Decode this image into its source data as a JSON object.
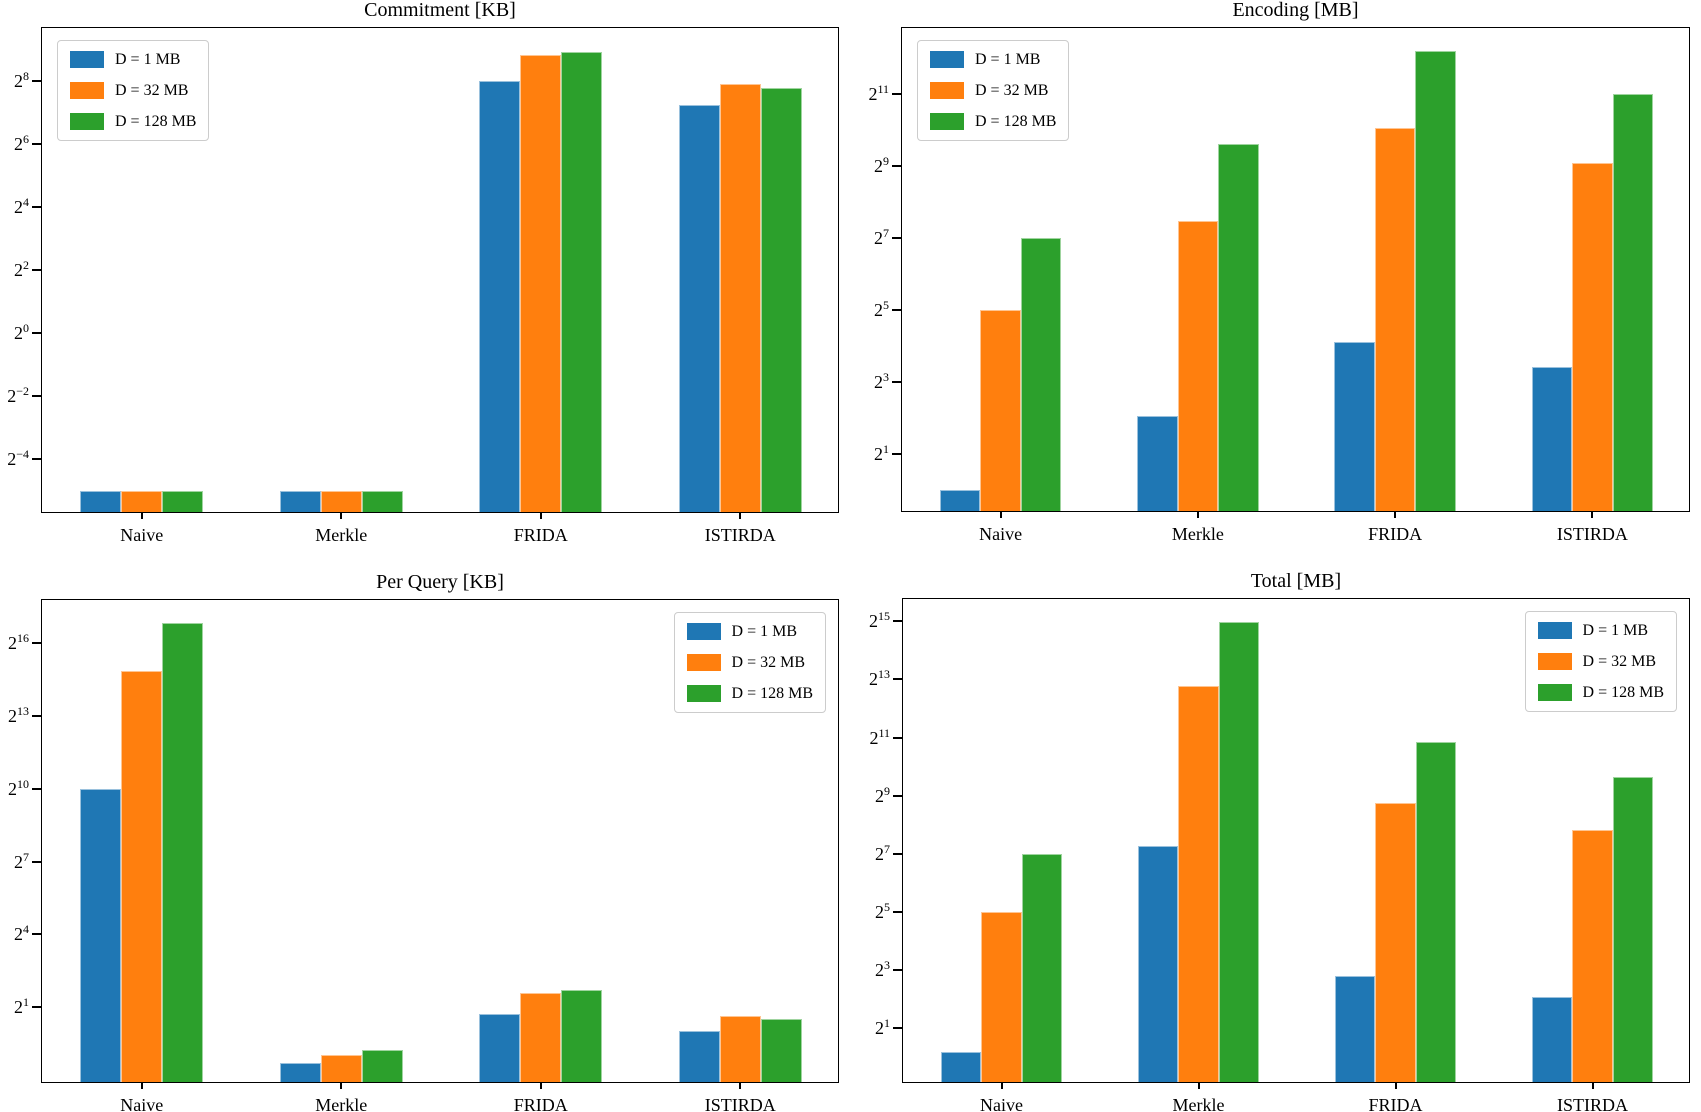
{
  "figure_background": "#ffffff",
  "palette": {
    "series": [
      "#1f77b4",
      "#ff7f0e",
      "#2ca02c"
    ],
    "axis": "#000000",
    "legend_border": "#cccccc"
  },
  "categories": [
    "Naive",
    "Merkle",
    "FRIDA",
    "ISTIRDA"
  ],
  "legend_labels": [
    "D = 1 MB",
    "D = 32 MB",
    "D = 128 MB"
  ],
  "chart_data": [
    {
      "type": "bar",
      "title": "Commitment [KB]",
      "unit": "KB",
      "yscale": "log2",
      "grid": false,
      "legend_position": "upper-left",
      "categories": [
        "Naive",
        "Merkle",
        "FRIDA",
        "ISTIRDA"
      ],
      "ytick_exponents": [
        8,
        6,
        4,
        2,
        0,
        -2,
        -4
      ],
      "ylim_log2": [
        -5.74,
        9.68
      ],
      "series": [
        {
          "name": "D = 1 MB",
          "log2_values": [
            -5.0,
            -5.0,
            8.0,
            7.25
          ]
        },
        {
          "name": "D = 32 MB",
          "log2_values": [
            -5.0,
            -5.0,
            8.82,
            7.9
          ]
        },
        {
          "name": "D = 128 MB",
          "log2_values": [
            -5.0,
            -5.0,
            8.92,
            7.78
          ]
        }
      ]
    },
    {
      "type": "bar",
      "title": "Encoding [MB]",
      "unit": "MB",
      "yscale": "log2",
      "grid": false,
      "legend_position": "upper-left",
      "categories": [
        "Naive",
        "Merkle",
        "FRIDA",
        "ISTIRDA"
      ],
      "ytick_exponents": [
        11,
        9,
        7,
        5,
        3,
        1
      ],
      "ylim_log2": [
        -0.64,
        12.84
      ],
      "series": [
        {
          "name": "D = 1 MB",
          "log2_values": [
            0.0,
            2.05,
            4.12,
            3.43
          ]
        },
        {
          "name": "D = 32 MB",
          "log2_values": [
            5.0,
            7.48,
            10.05,
            9.1
          ]
        },
        {
          "name": "D = 128 MB",
          "log2_values": [
            7.0,
            9.63,
            12.2,
            11.0
          ]
        }
      ]
    },
    {
      "type": "bar",
      "title": "Per Query [KB]",
      "unit": "KB",
      "yscale": "log2",
      "grid": false,
      "legend_position": "upper-right",
      "categories": [
        "Naive",
        "Merkle",
        "FRIDA",
        "ISTIRDA"
      ],
      "ytick_exponents": [
        16,
        13,
        10,
        7,
        4,
        1
      ],
      "ylim_log2": [
        -2.17,
        17.79
      ],
      "series": [
        {
          "name": "D = 1 MB",
          "log2_values": [
            10.0,
            -1.29,
            0.71,
            0.0
          ]
        },
        {
          "name": "D = 32 MB",
          "log2_values": [
            14.85,
            -0.96,
            1.59,
            0.65
          ]
        },
        {
          "name": "D = 128 MB",
          "log2_values": [
            16.85,
            -0.78,
            1.7,
            0.52
          ]
        }
      ]
    },
    {
      "type": "bar",
      "title": "Total [MB]",
      "unit": "MB",
      "yscale": "log2",
      "grid": false,
      "legend_position": "upper-right",
      "categories": [
        "Naive",
        "Merkle",
        "FRIDA",
        "ISTIRDA"
      ],
      "ytick_exponents": [
        15,
        13,
        11,
        9,
        7,
        5,
        3,
        1
      ],
      "ylim_log2": [
        -0.93,
        15.77
      ],
      "series": [
        {
          "name": "D = 1 MB",
          "log2_values": [
            0.16,
            7.25,
            2.8,
            2.07
          ]
        },
        {
          "name": "D = 32 MB",
          "log2_values": [
            5.0,
            12.79,
            8.76,
            7.81
          ]
        },
        {
          "name": "D = 128 MB",
          "log2_values": [
            7.0,
            14.97,
            10.84,
            9.65
          ]
        }
      ]
    }
  ]
}
